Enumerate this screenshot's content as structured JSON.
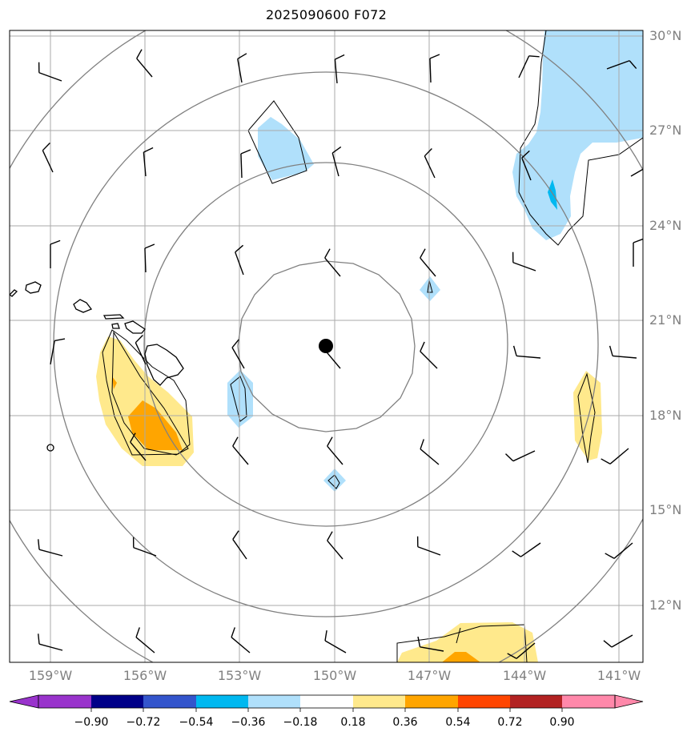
{
  "title": "2025090600 F072",
  "lat_labels": [
    "30°N",
    "27°N",
    "24°N",
    "21°N",
    "18°N",
    "15°N",
    "12°N"
  ],
  "lon_labels": [
    "159°W",
    "156°W",
    "153°W",
    "150°W",
    "147°W",
    "144°W",
    "141°W"
  ],
  "colorbar": {
    "ticks": [
      "−0.90",
      "−0.72",
      "−0.54",
      "−0.36",
      "−0.18",
      "0.18",
      "0.36",
      "0.54",
      "0.72",
      "0.90"
    ],
    "colors": [
      "#9933cc",
      "#000088",
      "#3355cc",
      "#00b8f0",
      "#b0e0fb",
      "#ffffff",
      "#ffe98c",
      "#ffa500",
      "#ff4500",
      "#b22222",
      "#ff88aa"
    ]
  },
  "colors": {
    "grid": "#aaaaaa",
    "range_rings": "#808080",
    "coast": "#000000",
    "light_blue": "#b0e0fb",
    "medium_blue": "#00b8f0",
    "light_yellow": "#ffe98c",
    "orange": "#ffa500",
    "red_orange": "#ff4500"
  },
  "center_marker": {
    "lat": 20.2,
    "lon": -150.3,
    "icon": "storm-center-dot"
  }
}
